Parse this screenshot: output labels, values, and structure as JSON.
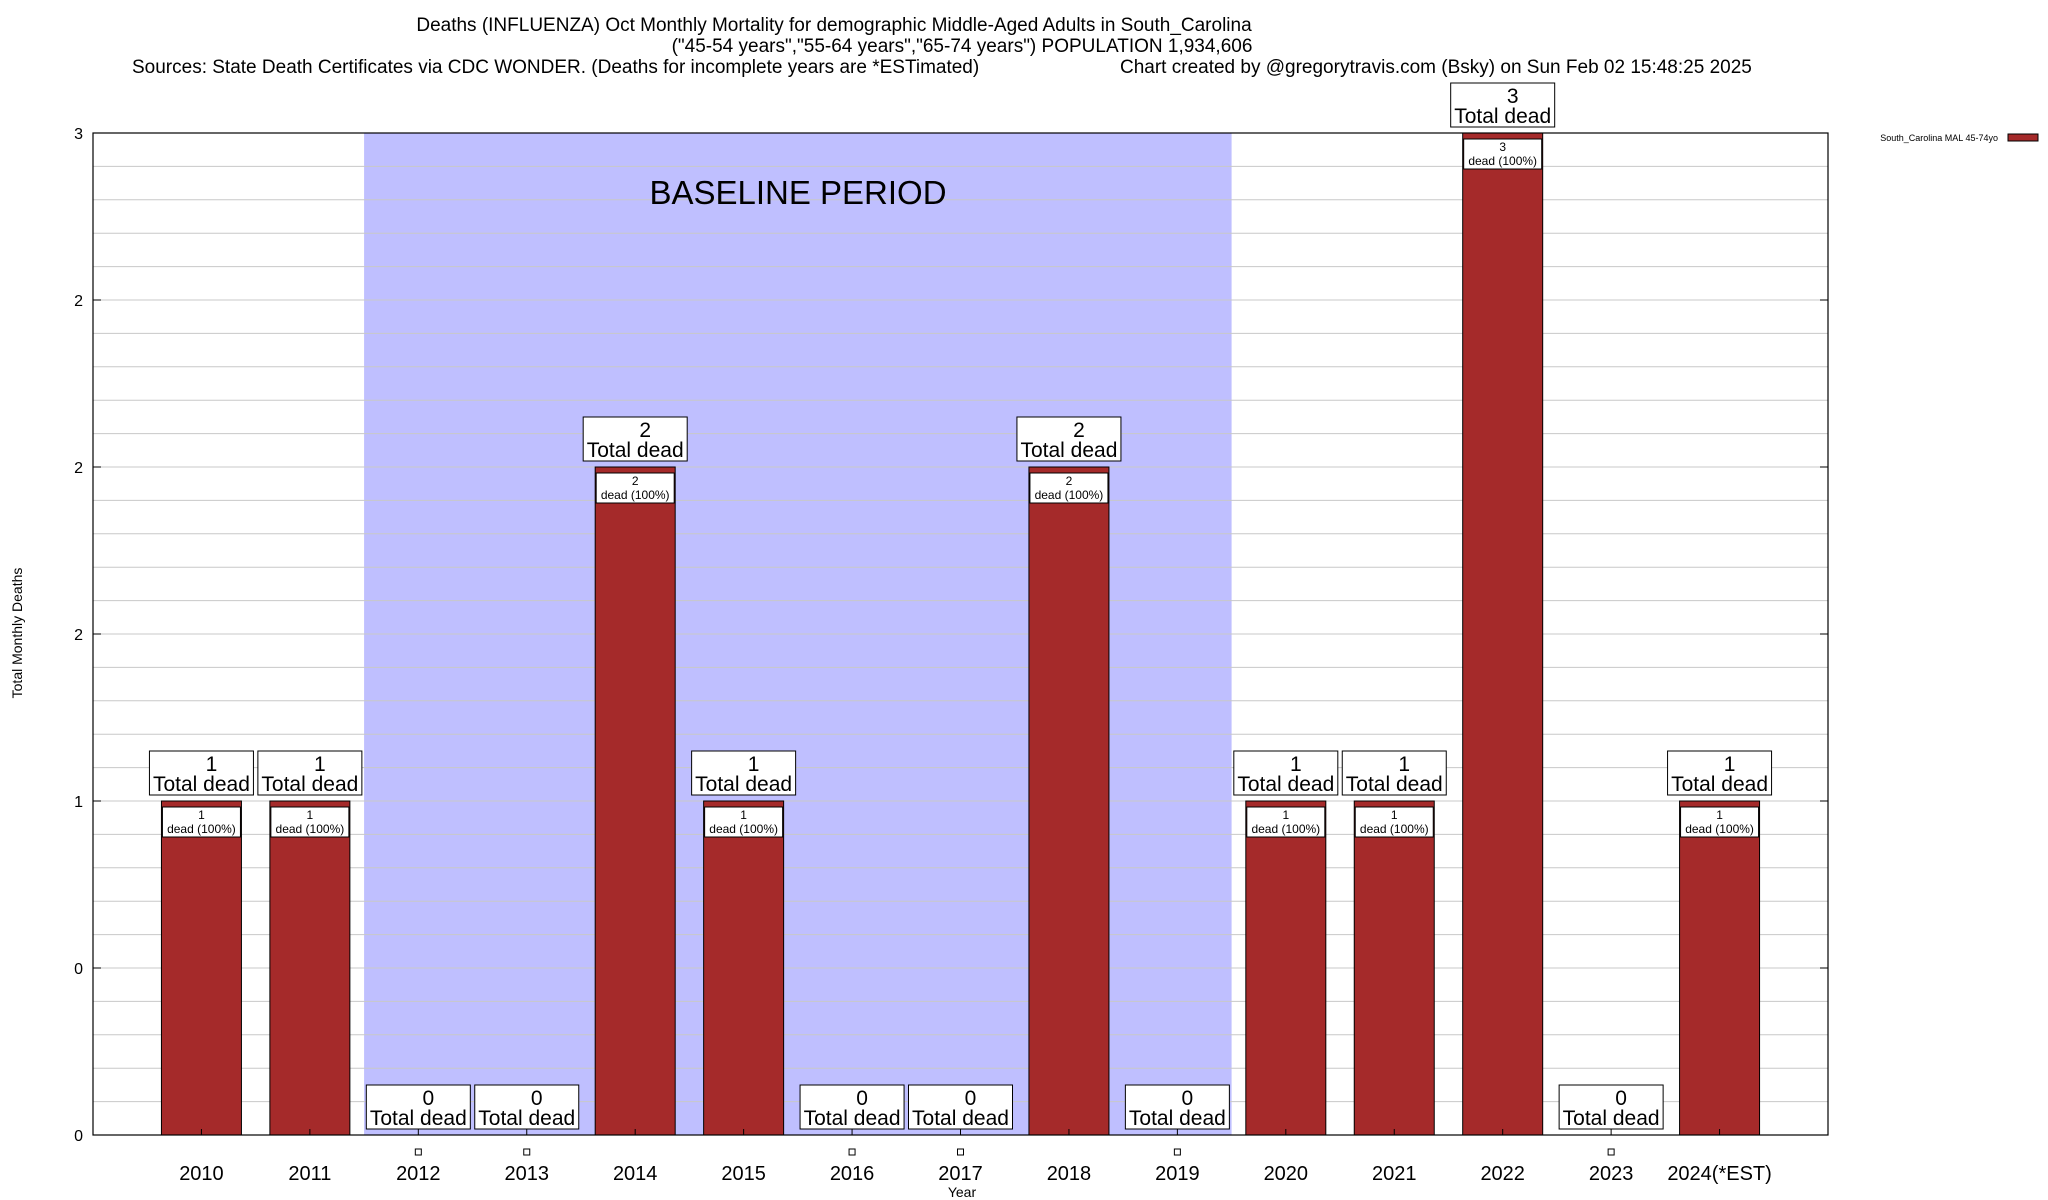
{
  "chart_data": {
    "type": "bar",
    "title_line1": "Deaths (INFLUENZA) Oct Monthly Mortality for demographic Middle-Aged Adults in South_Carolina",
    "title_line2": "(\"45-54 years\",\"55-64 years\",\"65-74 years\") POPULATION 1,934,606",
    "title_line3_left": "Sources: State Death Certificates via CDC WONDER. (Deaths for incomplete years are *ESTimated)",
    "title_line3_right": "Chart created by @gregorytravis.com (Bsky) on Sun Feb 02 15:48:25 2025",
    "xlabel": "Year",
    "ylabel": "Total Monthly Deaths",
    "ylim": [
      0,
      3
    ],
    "ytick_values": [
      0,
      0.5,
      1,
      1.5,
      2,
      2.5,
      3
    ],
    "ytick_labels": [
      "0",
      "0",
      "1",
      "2",
      "2",
      "2",
      "3"
    ],
    "categories": [
      "2010",
      "2011",
      "2012",
      "2013",
      "2014",
      "2015",
      "2016",
      "2017",
      "2018",
      "2019",
      "2020",
      "2021",
      "2022",
      "2023",
      "2024(*EST)"
    ],
    "series": [
      {
        "name": "South_Carolina MAL 45-74yo",
        "color": "#a52a2a",
        "values": [
          1,
          1,
          0,
          0,
          2,
          1,
          0,
          0,
          2,
          0,
          1,
          1,
          3,
          0,
          1
        ]
      }
    ],
    "total_label": "Total dead",
    "inner_label": "dead (100%)",
    "baseline_label": "BASELINE PERIOD",
    "baseline_start": "2012",
    "baseline_end": "2019",
    "baseline_color": "#bfbfff",
    "legend_position": "top-right",
    "grid": true
  }
}
